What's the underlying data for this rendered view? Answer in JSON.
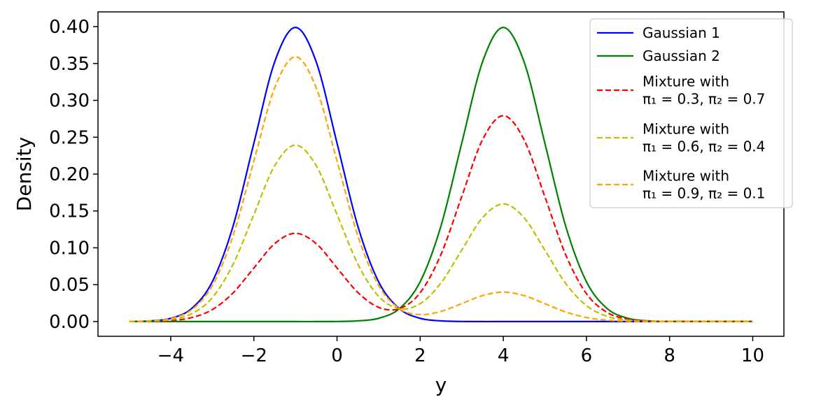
{
  "chart_data": {
    "type": "line",
    "title": "",
    "xlabel": "y",
    "ylabel": "Density",
    "xlim": [
      -5.75,
      10.75
    ],
    "ylim": [
      -0.02,
      0.42
    ],
    "xticks": [
      -4,
      -2,
      0,
      2,
      4,
      6,
      8,
      10
    ],
    "xtick_labels": [
      "−4",
      "−2",
      "0",
      "2",
      "4",
      "6",
      "8",
      "10"
    ],
    "yticks": [
      0.0,
      0.05,
      0.1,
      0.15,
      0.2,
      0.25,
      0.3,
      0.35,
      0.4
    ],
    "ytick_labels": [
      "0.00",
      "0.05",
      "0.10",
      "0.15",
      "0.20",
      "0.25",
      "0.30",
      "0.35",
      "0.40"
    ],
    "grid": false,
    "legend_position": "top-right",
    "x_range": [
      -5,
      10
    ],
    "x": [
      -5,
      -4.5,
      -4,
      -3.5,
      -3,
      -2.5,
      -2,
      -1.5,
      -1,
      -0.5,
      0,
      0.5,
      1,
      1.5,
      2,
      2.5,
      3,
      3.5,
      4,
      4.5,
      5,
      5.5,
      6,
      6.5,
      7,
      7.5,
      8,
      8.5,
      9,
      9.5,
      10
    ],
    "series": [
      {
        "name": "Gaussian 1",
        "color": "#0000ff",
        "dash": "solid",
        "values": [
          0.0001,
          0.0009,
          0.0044,
          0.0175,
          0.054,
          0.1295,
          0.242,
          0.3521,
          0.3989,
          0.3521,
          0.242,
          0.1295,
          0.054,
          0.0175,
          0.0044,
          0.0009,
          0.0001,
          0.0,
          0.0,
          0.0,
          0.0,
          0.0,
          0.0,
          0.0,
          0.0,
          0.0,
          0.0,
          0.0,
          0.0,
          0.0,
          0.0
        ]
      },
      {
        "name": "Gaussian 2",
        "color": "#008000",
        "dash": "solid",
        "values": [
          0.0,
          0.0,
          0.0,
          0.0,
          0.0,
          0.0,
          0.0,
          0.0,
          0.0,
          0.0,
          0.0001,
          0.0009,
          0.0044,
          0.0175,
          0.054,
          0.1295,
          0.242,
          0.3521,
          0.3989,
          0.3521,
          0.242,
          0.1295,
          0.054,
          0.0175,
          0.0044,
          0.0009,
          0.0001,
          0.0,
          0.0,
          0.0,
          0.0
        ]
      },
      {
        "name": "Mixture with π₁ = 0.3, π₂ = 0.7",
        "legend_lines": [
          "Mixture with",
          "π₁ = 0.3, π₂ = 0.7"
        ],
        "color": "#ff0000",
        "dash": "dashed",
        "values": [
          0.0,
          0.0003,
          0.0013,
          0.0053,
          0.0162,
          0.0389,
          0.0726,
          0.1056,
          0.1197,
          0.1056,
          0.0727,
          0.0395,
          0.0193,
          0.0175,
          0.0391,
          0.0909,
          0.1694,
          0.2465,
          0.2792,
          0.2465,
          0.1694,
          0.0907,
          0.0378,
          0.0123,
          0.0031,
          0.0006,
          0.0001,
          0.0,
          0.0,
          0.0,
          0.0
        ]
      },
      {
        "name": "Mixture with π₁ = 0.6, π₂ = 0.4",
        "legend_lines": [
          "Mixture with",
          "π₁ = 0.6, π₂ = 0.4"
        ],
        "color": "#bfbf00",
        "dash": "dashed",
        "values": [
          0.0001,
          0.0005,
          0.0026,
          0.0105,
          0.0324,
          0.0777,
          0.1452,
          0.2113,
          0.2393,
          0.2113,
          0.1452,
          0.0781,
          0.0342,
          0.0175,
          0.0243,
          0.0523,
          0.0969,
          0.1408,
          0.1596,
          0.1408,
          0.0968,
          0.0518,
          0.0216,
          0.007,
          0.0018,
          0.0004,
          0.0,
          0.0,
          0.0,
          0.0,
          0.0
        ]
      },
      {
        "name": "Mixture with π₁ = 0.9, π₂ = 0.1",
        "legend_lines": [
          "Mixture with",
          "π₁ = 0.9, π₂ = 0.1"
        ],
        "color": "#ffa500",
        "dash": "dashed",
        "values": [
          0.0001,
          0.0008,
          0.004,
          0.0158,
          0.0486,
          0.1166,
          0.2178,
          0.3169,
          0.359,
          0.3169,
          0.2178,
          0.1166,
          0.049,
          0.0175,
          0.0094,
          0.0138,
          0.0243,
          0.0352,
          0.0399,
          0.0352,
          0.0242,
          0.013,
          0.0054,
          0.0018,
          0.0004,
          0.0001,
          0.0,
          0.0,
          0.0,
          0.0,
          0.0
        ]
      }
    ]
  }
}
